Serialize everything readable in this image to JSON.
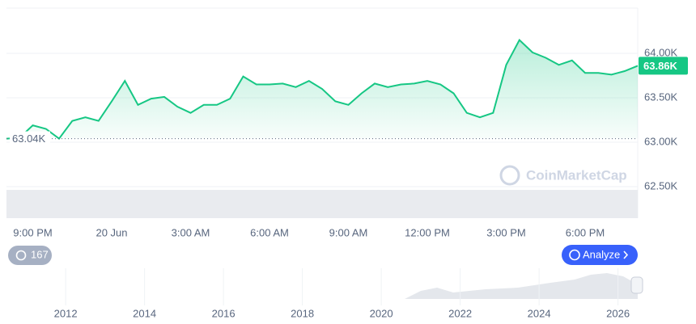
{
  "chart_data": {
    "type": "line",
    "x": [
      0,
      0.5,
      1,
      1.5,
      2,
      2.5,
      3,
      3.5,
      4,
      4.5,
      5,
      5.5,
      6,
      6.5,
      7,
      7.5,
      8,
      8.5,
      9,
      9.5,
      10,
      10.5,
      11,
      11.5,
      12,
      12.5,
      13,
      13.5,
      14,
      14.5,
      15,
      15.5,
      16,
      16.5,
      17,
      17.5,
      18,
      18.5,
      19,
      19.5,
      20,
      20.5,
      21,
      21.5,
      22,
      22.5,
      23,
      23.5,
      24
    ],
    "series": [
      {
        "color": "#16c784",
        "values": [
          63040,
          63050,
          63190,
          63150,
          63040,
          63240,
          63280,
          63240,
          63460,
          63690,
          63420,
          63490,
          63510,
          63400,
          63330,
          63420,
          63420,
          63490,
          63740,
          63650,
          63650,
          63660,
          63620,
          63690,
          63600,
          63460,
          63420,
          63550,
          63660,
          63620,
          63650,
          63660,
          63690,
          63650,
          63550,
          63330,
          63280,
          63330,
          63870,
          64150,
          64010,
          63950,
          63870,
          63920,
          63780,
          63780,
          63760,
          63800,
          63860
        ]
      }
    ],
    "xlim": [
      0,
      24
    ],
    "xticks": [
      {
        "value": 1,
        "label": "9:00 PM"
      },
      {
        "value": 4,
        "label": "20 Jun"
      },
      {
        "value": 7,
        "label": "3:00 AM"
      },
      {
        "value": 10,
        "label": "6:00 AM"
      },
      {
        "value": 13,
        "label": "9:00 AM"
      },
      {
        "value": 16,
        "label": "12:00 PM"
      },
      {
        "value": 19,
        "label": "3:00 PM"
      },
      {
        "value": 22,
        "label": "6:00 PM"
      }
    ],
    "ylim": [
      62400,
      64600
    ],
    "yticks": [
      {
        "value": 62500,
        "label": "62.50K"
      },
      {
        "value": 63000,
        "label": "63.00K"
      },
      {
        "value": 63500,
        "label": "63.50K"
      },
      {
        "value": 64000,
        "label": "64.00K"
      }
    ],
    "grid": true,
    "baseline": {
      "value": 63040,
      "label": "63.04K"
    },
    "last_price": {
      "value": 63860,
      "label": "63.86K"
    },
    "watermark": "CoinMarketCap",
    "history_count": "167",
    "analyze_button": "Analyze",
    "navigator": {
      "xlim": [
        2010.5,
        2026.5
      ],
      "xticks": [
        2012,
        2014,
        2016,
        2018,
        2020,
        2022,
        2024,
        2026
      ]
    }
  }
}
